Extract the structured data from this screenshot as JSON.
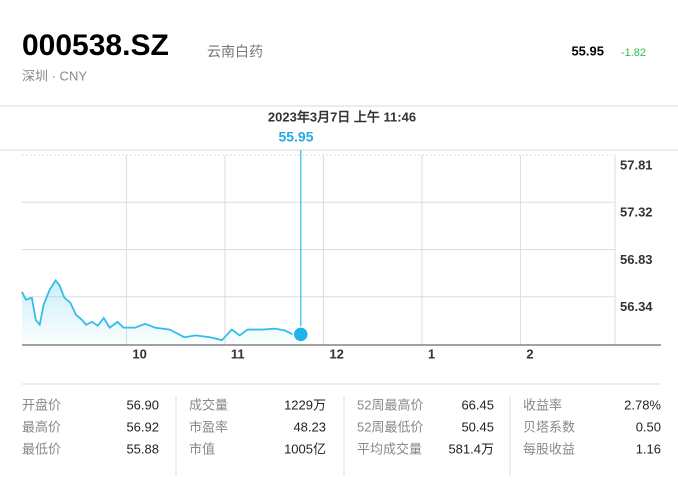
{
  "header": {
    "symbol": "000538.SZ",
    "name": "云南白药",
    "exchange": "深圳 · CNY",
    "price": "55.95",
    "change": "-1.82"
  },
  "chart_data": {
    "type": "line",
    "title": "2023年3月7日 上午 11:46",
    "cursor": {
      "x": 11.77,
      "value": 55.95
    },
    "series": [
      {
        "name": "000538.SZ",
        "color": "#33bde9",
        "x": [
          8.94,
          8.98,
          9.04,
          9.08,
          9.12,
          9.16,
          9.22,
          9.28,
          9.32,
          9.37,
          9.43,
          9.49,
          9.55,
          9.59,
          9.65,
          9.71,
          9.77,
          9.83,
          9.91,
          9.97,
          10.09,
          10.19,
          10.29,
          10.44,
          10.59,
          10.7,
          10.85,
          10.97,
          11.07,
          11.15,
          11.23,
          11.38,
          11.51,
          11.61,
          11.71,
          11.78
        ],
        "values": [
          56.39,
          56.31,
          56.33,
          56.1,
          56.05,
          56.26,
          56.41,
          56.51,
          56.46,
          56.33,
          56.28,
          56.15,
          56.1,
          56.05,
          56.08,
          56.04,
          56.12,
          56.02,
          56.08,
          56.02,
          56.02,
          56.06,
          56.02,
          56.0,
          55.92,
          55.94,
          55.92,
          55.89,
          56.0,
          55.94,
          56.0,
          56.0,
          56.01,
          55.99,
          55.94,
          55.93
        ]
      }
    ],
    "xlim": [
      8.94,
      14.96
    ],
    "xticks": [
      10,
      11,
      12,
      {
        "value": 13,
        "label": "1"
      },
      {
        "value": 14,
        "label": "2"
      }
    ],
    "ylim": [
      55.84,
      57.81
    ],
    "yticks": [
      57.81,
      57.32,
      56.83,
      56.34
    ],
    "grid": true
  },
  "stats": [
    [
      [
        "开盘价",
        "56.90"
      ],
      [
        "最高价",
        "56.92"
      ],
      [
        "最低价",
        "55.88"
      ]
    ],
    [
      [
        "成交量",
        "1229万"
      ],
      [
        "市盈率",
        "48.23"
      ],
      [
        "市值",
        "1005亿"
      ]
    ],
    [
      [
        "52周最高价",
        "66.45"
      ],
      [
        "52周最低价",
        "50.45"
      ],
      [
        "平均成交量",
        "581.4万"
      ]
    ],
    [
      [
        "收益率",
        "2.78%"
      ],
      [
        "贝塔系数",
        "0.50"
      ],
      [
        "每股收益",
        "1.16"
      ]
    ]
  ]
}
